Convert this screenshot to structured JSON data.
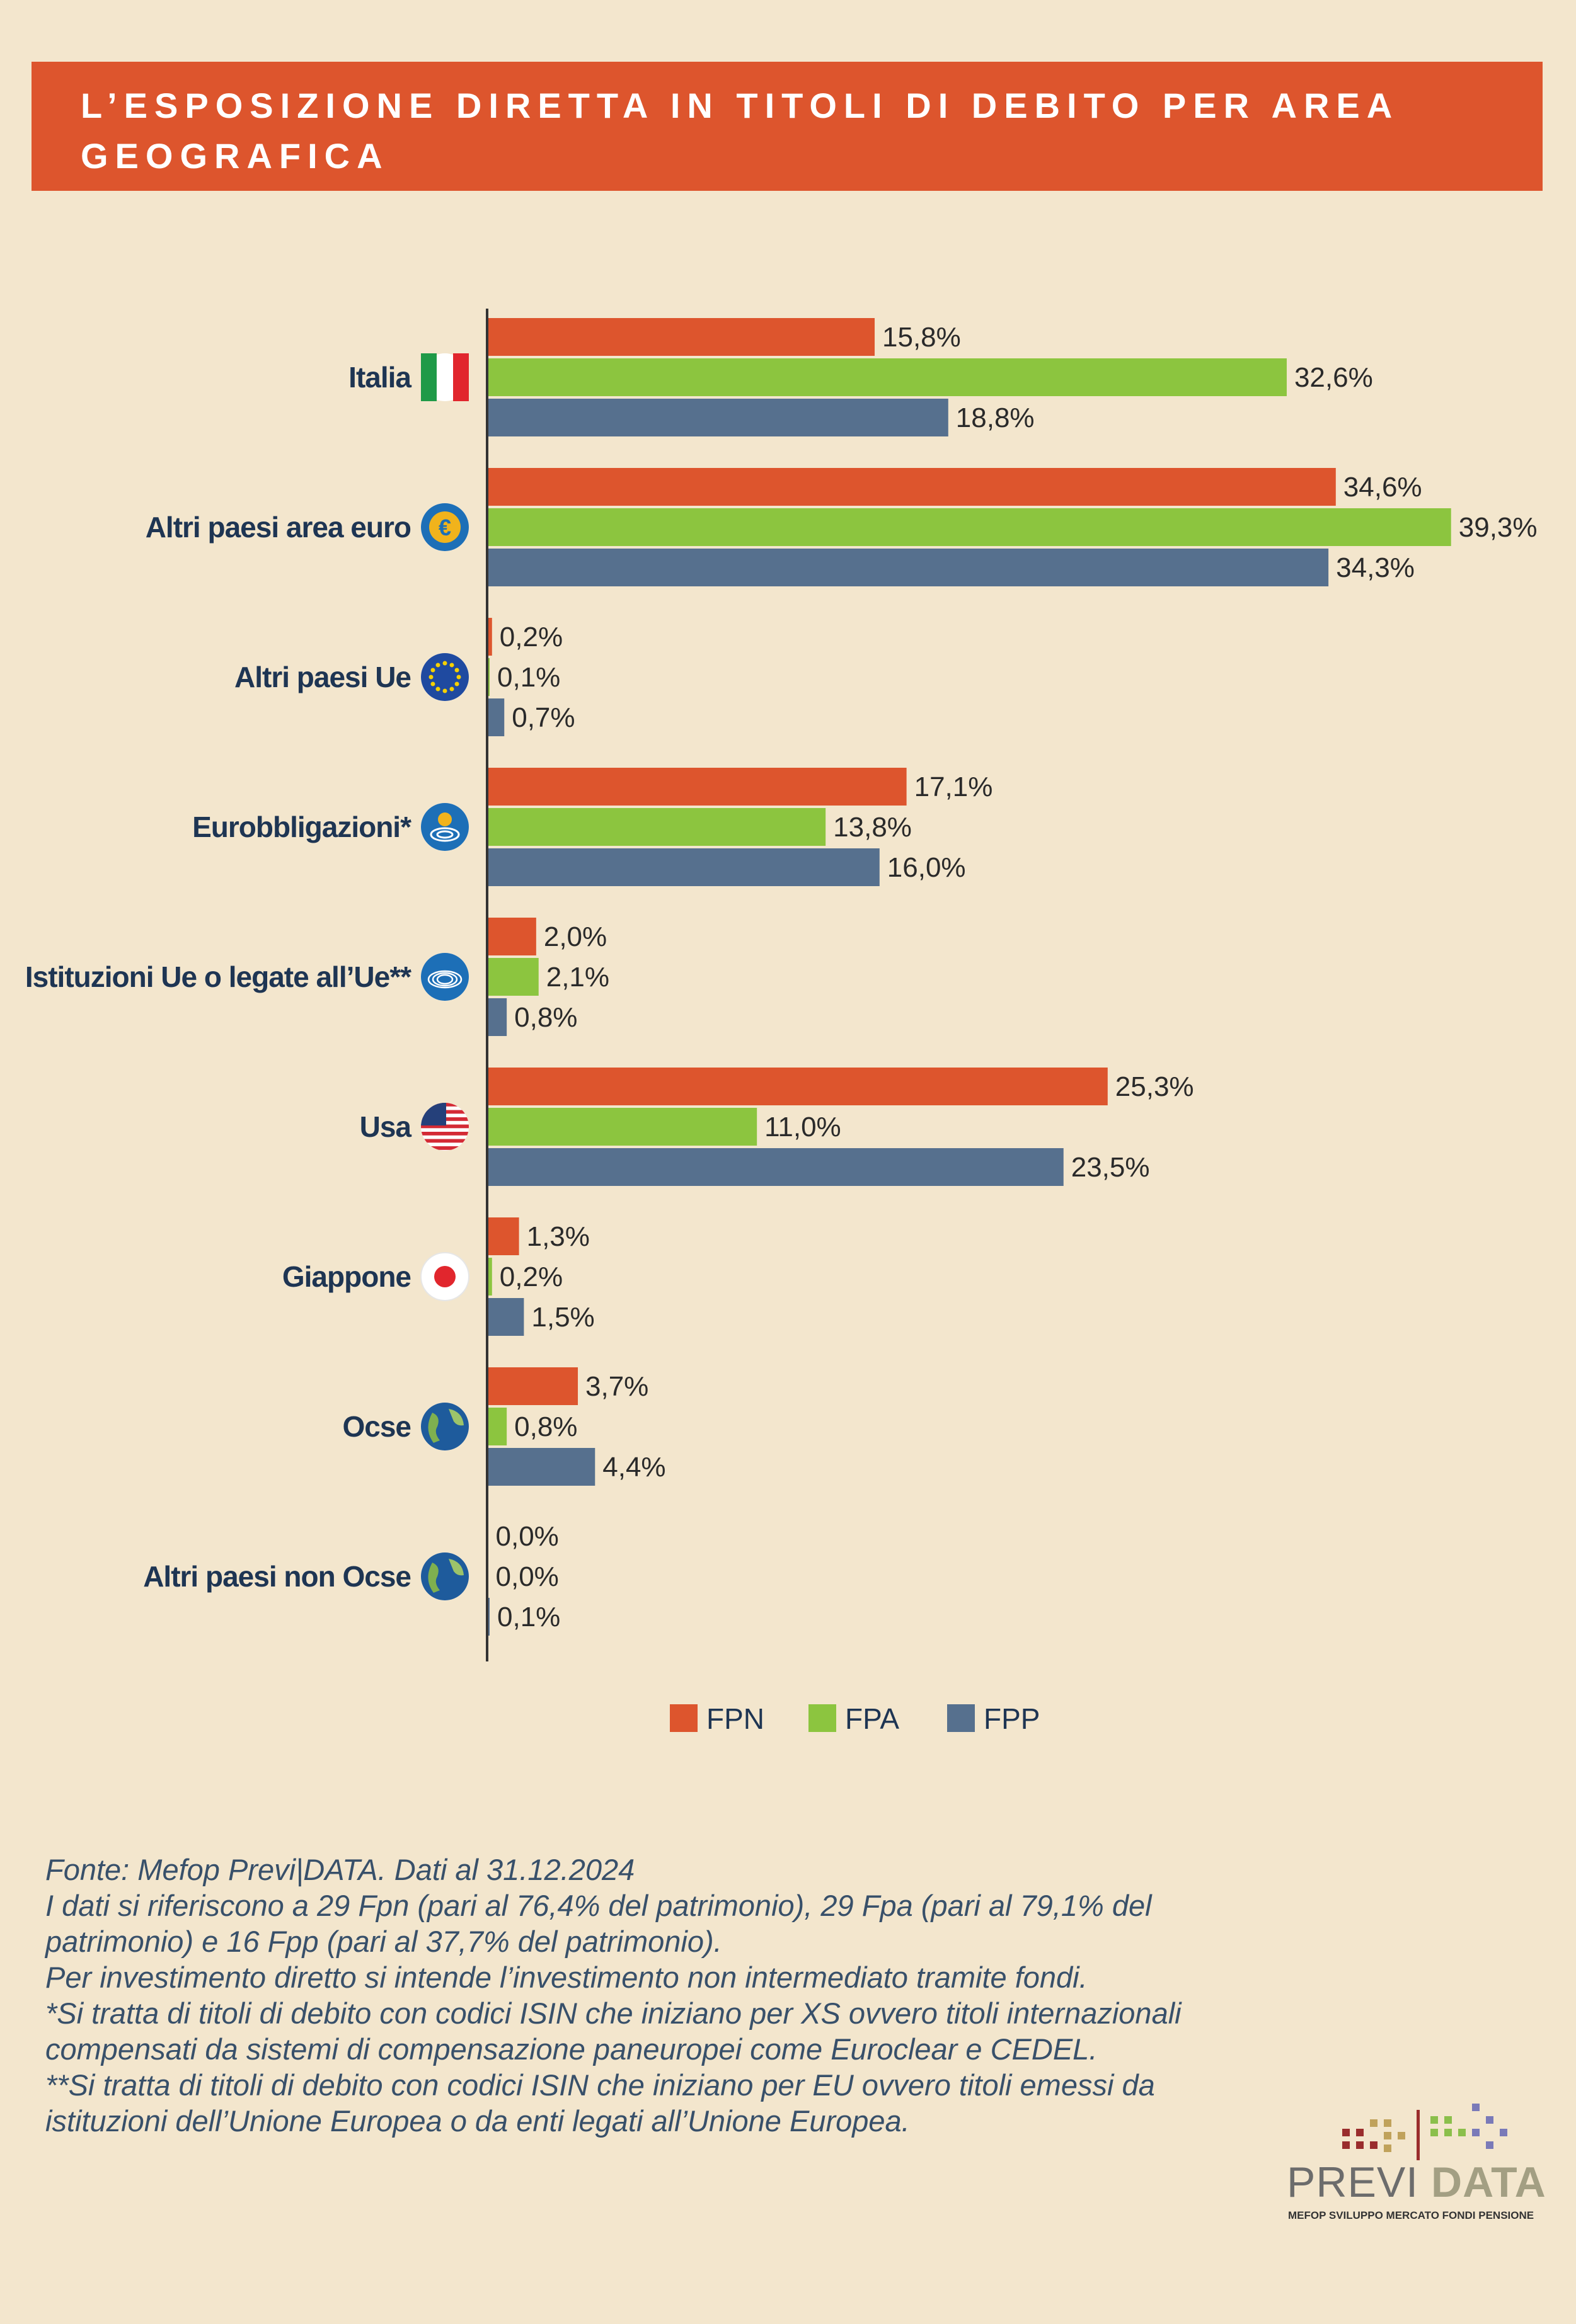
{
  "title": "L’esposizione diretta in titoli di debito per area geografica",
  "colors": {
    "fpn": "#dd552d",
    "fpa": "#8cc53f",
    "fpp": "#56708e",
    "axis": "#333333",
    "label": "#1e3553"
  },
  "chart_data": {
    "type": "bar",
    "orientation": "horizontal",
    "title": "L’esposizione diretta in titoli di debito per area geografica",
    "xlim": [
      0,
      40
    ],
    "categories": [
      {
        "label": "Italia",
        "icon": "italy-flag-icon"
      },
      {
        "label": "Altri paesi area euro",
        "icon": "euro-icon"
      },
      {
        "label": "Altri paesi Ue",
        "icon": "eu-flag-icon"
      },
      {
        "label": "Eurobbligazioni*",
        "icon": "eurobond-icon"
      },
      {
        "label": "Istituzioni Ue o legate all’Ue**",
        "icon": "eu-parliament-icon"
      },
      {
        "label": "Usa",
        "icon": "usa-flag-icon"
      },
      {
        "label": "Giappone",
        "icon": "japan-flag-icon"
      },
      {
        "label": "Ocse",
        "icon": "globe-icon"
      },
      {
        "label": "Altri paesi non Ocse",
        "icon": "globe-icon"
      }
    ],
    "series": [
      {
        "name": "FPN",
        "color": "#dd552d",
        "values": [
          15.8,
          34.6,
          0.2,
          17.1,
          2.0,
          25.3,
          1.3,
          3.7,
          0.0
        ],
        "labels": [
          "15,8%",
          "34,6%",
          "0,2%",
          "17,1%",
          "2,0%",
          "25,3%",
          "1,3%",
          "3,7%",
          "0,0%"
        ]
      },
      {
        "name": "FPA",
        "color": "#8cc53f",
        "values": [
          32.6,
          39.3,
          0.1,
          13.8,
          2.1,
          11.0,
          0.2,
          0.8,
          0.0
        ],
        "labels": [
          "32,6%",
          "39,3%",
          "0,1%",
          "13,8%",
          "2,1%",
          "11,0%",
          "0,2%",
          "0,8%",
          "0,0%"
        ]
      },
      {
        "name": "FPP",
        "color": "#56708e",
        "values": [
          18.8,
          34.3,
          0.7,
          16.0,
          0.8,
          23.5,
          1.5,
          4.4,
          0.1
        ],
        "labels": [
          "18,8%",
          "34,3%",
          "0,7%",
          "16,0%",
          "0,8%",
          "23,5%",
          "1,5%",
          "4,4%",
          "0,1%"
        ]
      }
    ],
    "legend": [
      "FPN",
      "FPA",
      "FPP"
    ],
    "legend_position": "bottom-center"
  },
  "notes": [
    "Fonte: Mefop Previ|DATA. Dati al 31.12.2024",
    "I dati si riferiscono a 29 Fpn (pari al 76,4% del patrimonio), 29 Fpa (pari al 79,1% del patrimonio) e 16 Fpp (pari al 37,7% del patrimonio).",
    "Per investimento diretto si intende l’investimento non intermediato tramite fondi.",
    "*Si tratta di titoli di debito con codici ISIN che iniziano per XS ovvero titoli internazionali compensati da sistemi di compensazione paneuropei come Euroclear e CEDEL.",
    "**Si tratta di titoli di debito con codici ISIN che iniziano per EU ovvero titoli emessi da istituzioni dell’Unione Europea o da enti legati all’Unione Europea."
  ],
  "logo": {
    "word_left": "PREVI",
    "word_right": "DATA",
    "subtitle": "MEFOP SVILUPPO MERCATO FONDI PENSIONE"
  }
}
